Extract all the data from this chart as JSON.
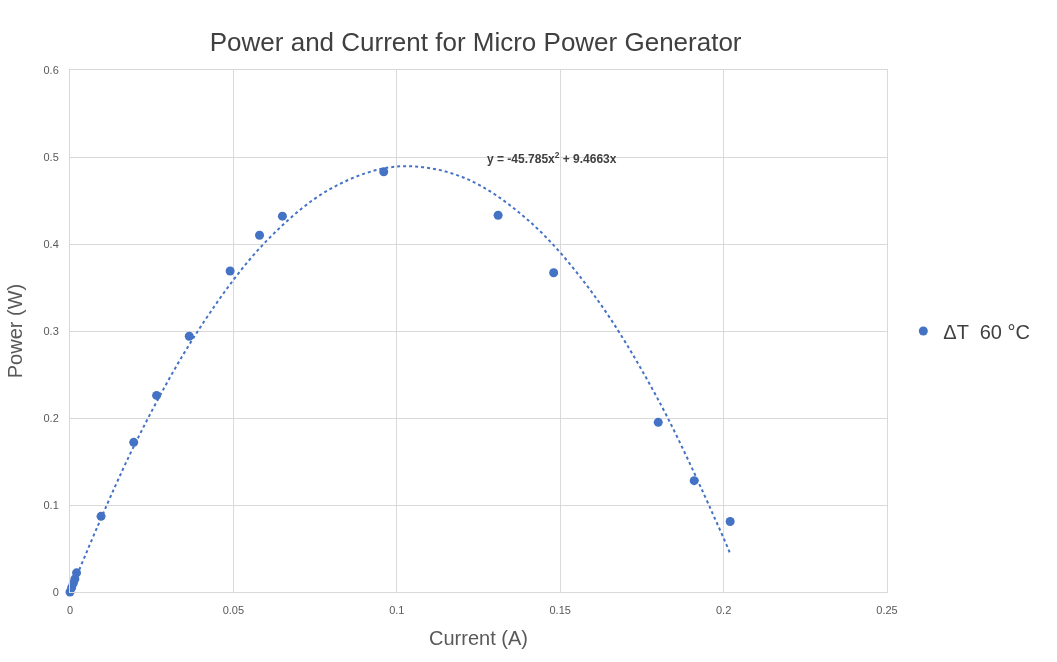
{
  "chart_data": {
    "type": "scatter",
    "title": "Power and Current for Micro Power Generator",
    "xlabel": "Current (A)",
    "ylabel": "Power (W)",
    "series": [
      {
        "name": "ΔT  60 °C",
        "color": "#4472c4",
        "marker": "circle",
        "x": [
          0,
          0.0005,
          0.001,
          0.0015,
          0.002,
          0.0095,
          0.0195,
          0.0265,
          0.0365,
          0.049,
          0.058,
          0.065,
          0.096,
          0.131,
          0.148,
          0.18,
          0.191,
          0.202
        ],
        "values": [
          0,
          0.005,
          0.01,
          0.015,
          0.022,
          0.087,
          0.172,
          0.226,
          0.294,
          0.369,
          0.41,
          0.432,
          0.483,
          0.433,
          0.367,
          0.195,
          0.128,
          0.081
        ]
      },
      {
        "type": "line",
        "color": "#4472c4",
        "line_style": "dotted",
        "x": [
          0,
          0.02,
          0.04,
          0.06,
          0.08,
          0.1,
          0.12,
          0.14,
          0.16,
          0.18,
          0.2,
          0.202
        ],
        "values": [
          0,
          0.171,
          0.305,
          0.403,
          0.464,
          0.489,
          0.477,
          0.428,
          0.343,
          0.221,
          0.062,
          0.044
        ]
      }
    ],
    "annotations": [
      "y = -45.785x$^{2}$ + 9.4663x"
    ],
    "xlim": [
      0,
      0.25
    ],
    "xticks": [
      0,
      0.05,
      0.1,
      0.15,
      0.2,
      0.25
    ],
    "ylim": [
      0,
      0.6
    ],
    "yticks": [
      0,
      0.1,
      0.2,
      0.3,
      0.4,
      0.5,
      0.6
    ],
    "grid": true,
    "legend": "right"
  }
}
